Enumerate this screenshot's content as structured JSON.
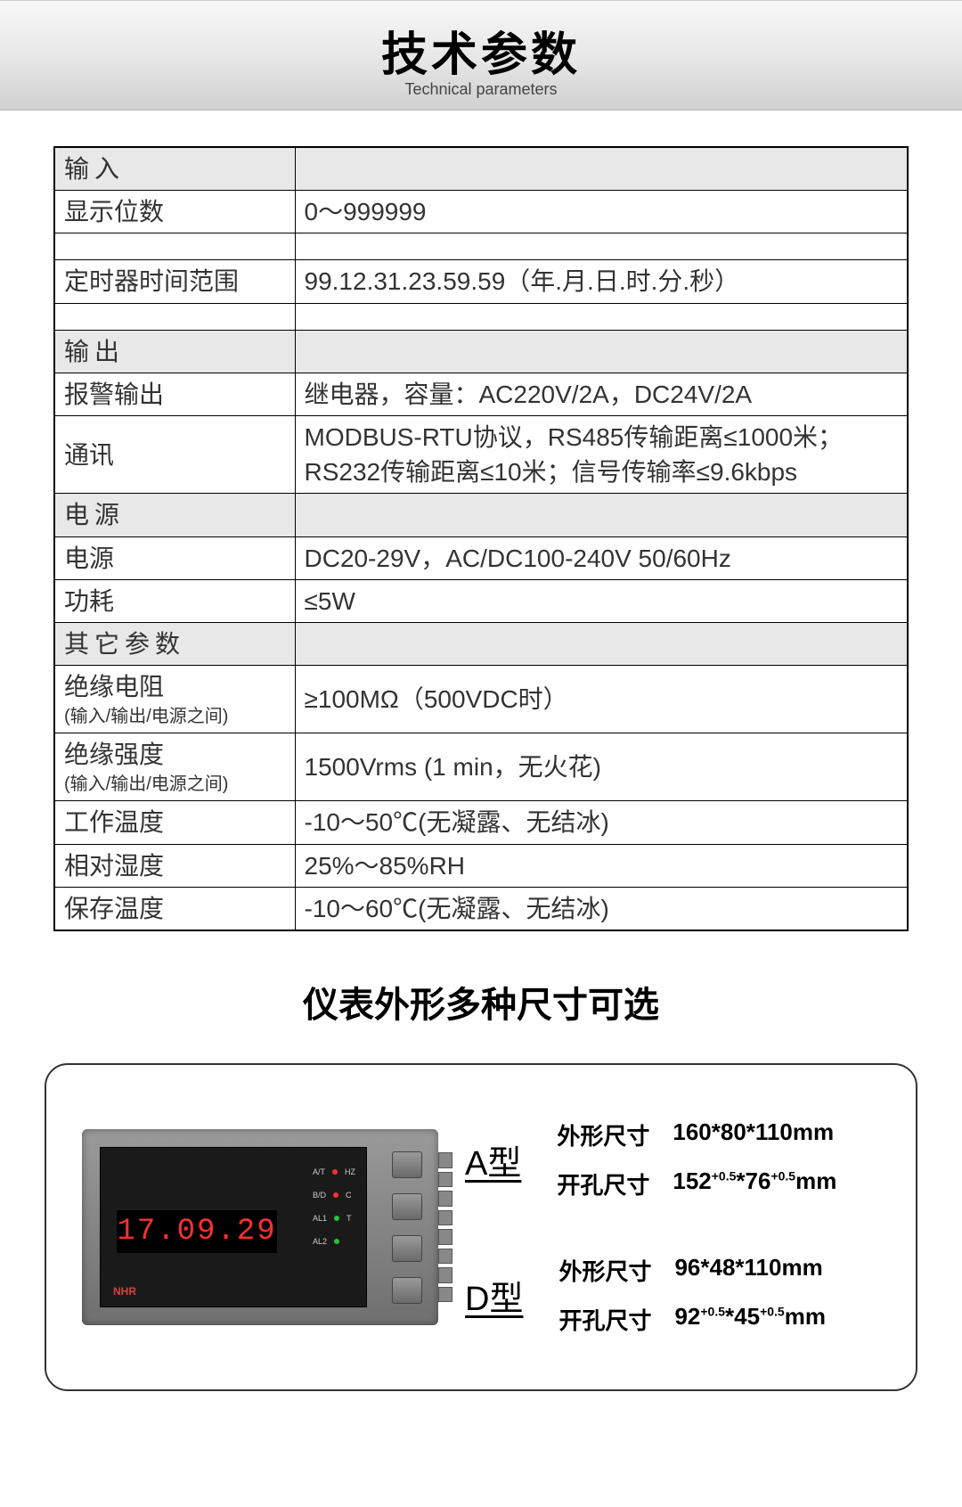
{
  "header": {
    "title": "技术参数",
    "subtitle": "Technical parameters"
  },
  "sections": {
    "input": "输入",
    "output": "输出",
    "power": "电源",
    "other": "其它参数"
  },
  "rows": {
    "display_digits": {
      "label": "显示位数",
      "value": "0～999999"
    },
    "timer_range": {
      "label": "定时器时间范围",
      "value": "99.12.31.23.59.59（年.月.日.时.分.秒）"
    },
    "alarm_output": {
      "label": "报警输出",
      "value": "继电器，容量：AC220V/2A，DC24V/2A"
    },
    "comm": {
      "label": "通讯",
      "value": "MODBUS-RTU协议，RS485传输距离≤1000米；RS232传输距离≤10米；信号传输率≤9.6kbps"
    },
    "power_supply": {
      "label": "电源",
      "value": "DC20-29V，AC/DC100-240V  50/60Hz"
    },
    "consumption": {
      "label": "功耗",
      "value": "≤5W"
    },
    "insulation_r": {
      "label": "绝缘电阻",
      "note": "(输入/输出/电源之间)",
      "value": "≥100MΩ（500VDC时）"
    },
    "insulation_s": {
      "label": "绝缘强度",
      "note": "(输入/输出/电源之间)",
      "value": "1500Vrms (1 min，无火花)"
    },
    "work_temp": {
      "label": "工作温度",
      "value": "-10～50℃(无凝露、无结冰)"
    },
    "rel_humidity": {
      "label": "相对湿度",
      "value": "25%～85%RH"
    },
    "storage_temp": {
      "label": "保存温度",
      "value": "-10～60℃(无凝露、无结冰)"
    }
  },
  "sizes_title": "仪表外形多种尺寸可选",
  "meter": {
    "display": "17.09.29",
    "logo": "NHR",
    "led_rows": [
      {
        "left": "A/T",
        "right": "HZ"
      },
      {
        "left": "B/D",
        "right": "C"
      },
      {
        "left": "AL1",
        "right": "T"
      },
      {
        "left": "AL2",
        "right": ""
      }
    ]
  },
  "models": [
    {
      "name": "A型",
      "outline_label": "外形尺寸",
      "outline_value": "160*80*110mm",
      "cut_label": "开孔尺寸",
      "cut_prefix": "152",
      "cut_sup1": "+0.5",
      "cut_mid": "*76",
      "cut_sup2": "+0.5",
      "cut_suffix": "mm"
    },
    {
      "name": "D型",
      "outline_label": "外形尺寸",
      "outline_value": "96*48*110mm",
      "cut_label": "开孔尺寸",
      "cut_prefix": "92",
      "cut_sup1": "+0.5",
      "cut_mid": "*45",
      "cut_sup2": "+0.5",
      "cut_suffix": "mm"
    }
  ],
  "colors": {
    "header_bg_top": "#f8f8f8",
    "header_bg_bottom": "#d0d0d0",
    "section_bg": "#e8e8e8",
    "border": "#000000",
    "led_red": "#ff3030",
    "led_green": "#22c33a",
    "meter_face": "#1a1a1a"
  }
}
